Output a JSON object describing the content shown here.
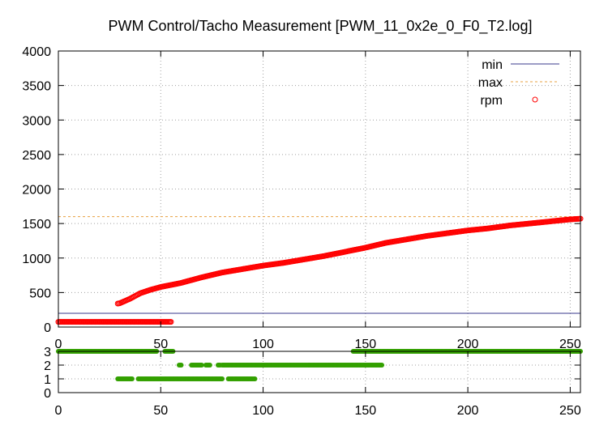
{
  "chart_data": [
    {
      "type": "scatter",
      "title": "PWM Control/Tacho Measurement [PWM_11_0x2e_0_F0_T2.log]",
      "xlabel": "",
      "ylabel": "",
      "xlim": [
        0,
        255
      ],
      "ylim": [
        0,
        4000
      ],
      "xticks": [
        0,
        50,
        100,
        150,
        200,
        250
      ],
      "yticks": [
        0,
        500,
        1000,
        1500,
        2000,
        2500,
        3000,
        3500,
        4000
      ],
      "grid": true,
      "legend_position": "top-right",
      "series": [
        {
          "name": "min",
          "style": "line",
          "color": "#3a3a8c",
          "y": 200
        },
        {
          "name": "max",
          "style": "dashed-line",
          "color": "#e8a040",
          "y": 1600
        },
        {
          "name": "rpm",
          "style": "open-circles",
          "color": "#ff0000",
          "segments": [
            {
              "x_range": [
                0,
                55
              ],
              "values_at_x": [
                [
                  0,
                  75
                ],
                [
                  55,
                  75
                ]
              ]
            },
            {
              "x_range": [
                29,
                255
              ],
              "values_at_x": [
                [
                  29,
                  340
                ],
                [
                  30,
                  345
                ],
                [
                  35,
                  410
                ],
                [
                  40,
                  490
                ],
                [
                  45,
                  540
                ],
                [
                  50,
                  580
                ],
                [
                  60,
                  640
                ],
                [
                  70,
                  720
                ],
                [
                  80,
                  790
                ],
                [
                  90,
                  840
                ],
                [
                  100,
                  890
                ],
                [
                  110,
                  930
                ],
                [
                  120,
                  980
                ],
                [
                  130,
                  1030
                ],
                [
                  140,
                  1090
                ],
                [
                  150,
                  1150
                ],
                [
                  160,
                  1220
                ],
                [
                  170,
                  1270
                ],
                [
                  180,
                  1320
                ],
                [
                  190,
                  1360
                ],
                [
                  200,
                  1400
                ],
                [
                  210,
                  1430
                ],
                [
                  220,
                  1470
                ],
                [
                  230,
                  1500
                ],
                [
                  240,
                  1530
                ],
                [
                  250,
                  1560
                ],
                [
                  255,
                  1570
                ]
              ]
            }
          ]
        }
      ]
    },
    {
      "type": "scatter",
      "title": "",
      "xlim": [
        0,
        255
      ],
      "ylim": [
        0,
        3
      ],
      "xticks": [
        0,
        50,
        100,
        150,
        200,
        250
      ],
      "yticks": [
        0,
        1,
        2,
        3
      ],
      "grid": true,
      "series": [
        {
          "style": "filled-dots",
          "color": "#33a000",
          "runs": [
            {
              "y": 3,
              "x_ranges": [
                [
                  0,
                  48
                ],
                [
                  52,
                  56
                ],
                [
                  144,
                  255
                ]
              ]
            },
            {
              "y": 2,
              "x_ranges": [
                [
                  59,
                  60
                ],
                [
                  65,
                  70
                ],
                [
                  72,
                  74
                ],
                [
                  78,
                  79
                ],
                [
                  80,
                  158
                ]
              ]
            },
            {
              "y": 1,
              "x_ranges": [
                [
                  29,
                  36
                ],
                [
                  39,
                  80
                ],
                [
                  83,
                  96
                ]
              ]
            }
          ]
        }
      ]
    }
  ]
}
